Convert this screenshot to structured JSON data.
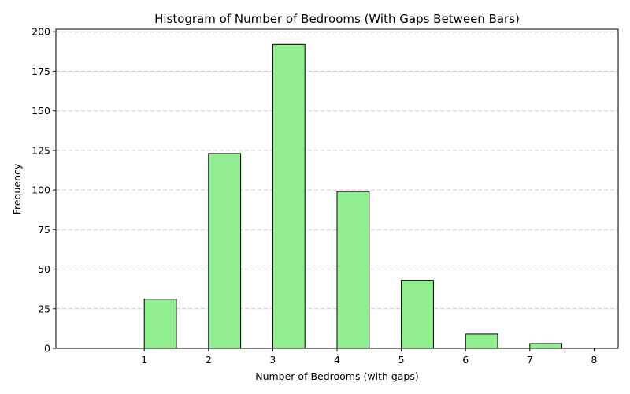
{
  "chart_data": {
    "type": "bar",
    "title": "Histogram of Number of Bedrooms (With Gaps Between Bars)",
    "xlabel": "Number of Bedrooms (with gaps)",
    "ylabel": "Frequency",
    "bins": [
      {
        "start": 0.5,
        "end": 1.0,
        "value": 0
      },
      {
        "start": 1.0,
        "end": 1.5,
        "value": 31
      },
      {
        "start": 2.0,
        "end": 2.5,
        "value": 123
      },
      {
        "start": 3.0,
        "end": 3.5,
        "value": 192
      },
      {
        "start": 4.0,
        "end": 4.5,
        "value": 99
      },
      {
        "start": 5.0,
        "end": 5.5,
        "value": 43
      },
      {
        "start": 6.0,
        "end": 6.5,
        "value": 9
      },
      {
        "start": 7.0,
        "end": 7.5,
        "value": 3
      },
      {
        "start": 7.5,
        "end": 8.0,
        "value": 0
      }
    ],
    "xticks": [
      1,
      2,
      3,
      4,
      5,
      6,
      7,
      8
    ],
    "yticks": [
      0,
      25,
      50,
      75,
      100,
      125,
      150,
      175,
      200
    ],
    "xlim": [
      -0.375,
      8.375
    ],
    "ylim": [
      0,
      201.6
    ],
    "grid": "y-dashed",
    "bar_color": "#90ee90",
    "edge_color": "#000000"
  }
}
